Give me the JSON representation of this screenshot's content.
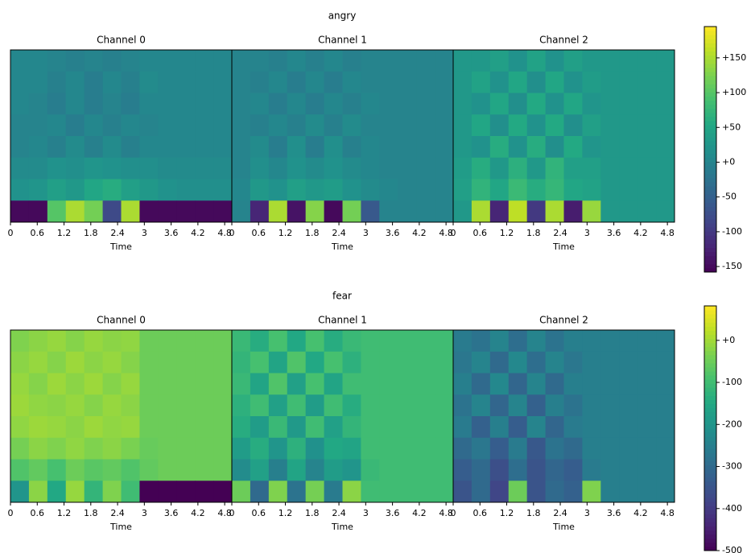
{
  "chart_data": [
    {
      "type": "heatmap",
      "title": "angry",
      "colormap": "viridis",
      "clim": [
        -158,
        195
      ],
      "cticks": [
        {
          "value": 150,
          "label": "+150"
        },
        {
          "value": 100,
          "label": "+100"
        },
        {
          "value": 50,
          "label": "+50"
        },
        {
          "value": 0,
          "label": "+0"
        },
        -50,
        -100,
        -150
      ],
      "panels": [
        {
          "title": "Channel 0",
          "xlabel": "Time",
          "xlim": [
            0,
            4.96
          ],
          "xticks": [
            0,
            0.6,
            1.2,
            1.8,
            2.4,
            3,
            3.6,
            4.2,
            4.8
          ],
          "values": [
            [
              5,
              5,
              0,
              -5,
              0,
              -5,
              0,
              5,
              5,
              5,
              5,
              5
            ],
            [
              5,
              5,
              -5,
              5,
              -10,
              5,
              -5,
              10,
              5,
              5,
              5,
              5
            ],
            [
              5,
              0,
              -10,
              5,
              -10,
              0,
              -10,
              5,
              5,
              5,
              5,
              5
            ],
            [
              0,
              0,
              5,
              -10,
              5,
              -5,
              5,
              0,
              5,
              5,
              5,
              5
            ],
            [
              0,
              5,
              -5,
              10,
              -5,
              10,
              -5,
              5,
              5,
              5,
              5,
              5
            ],
            [
              10,
              10,
              20,
              15,
              25,
              20,
              15,
              15,
              10,
              10,
              10,
              10
            ],
            [
              20,
              25,
              40,
              30,
              50,
              60,
              40,
              30,
              20,
              15,
              15,
              15
            ],
            [
              -150,
              -150,
              100,
              150,
              120,
              -80,
              150,
              -150,
              -150,
              -150,
              -150,
              -150
            ]
          ]
        },
        {
          "title": "Channel 1",
          "xlabel": "Time",
          "xlim": [
            0,
            4.96
          ],
          "xticks": [
            0,
            0.6,
            1.2,
            1.8,
            2.4,
            3,
            3.6,
            4.2,
            4.8
          ],
          "values": [
            [
              0,
              0,
              -5,
              5,
              -5,
              5,
              -5,
              0,
              0,
              0,
              0,
              0
            ],
            [
              0,
              -5,
              5,
              -10,
              5,
              -10,
              5,
              0,
              0,
              0,
              0,
              0
            ],
            [
              0,
              5,
              -10,
              5,
              -10,
              5,
              -5,
              5,
              0,
              0,
              0,
              0
            ],
            [
              0,
              -5,
              5,
              -5,
              10,
              -5,
              10,
              0,
              0,
              0,
              0,
              0
            ],
            [
              0,
              10,
              -10,
              15,
              -10,
              15,
              -5,
              5,
              0,
              0,
              0,
              0
            ],
            [
              0,
              15,
              5,
              20,
              10,
              20,
              10,
              5,
              0,
              0,
              0,
              0
            ],
            [
              5,
              30,
              20,
              40,
              30,
              35,
              20,
              10,
              5,
              0,
              0,
              0
            ],
            [
              0,
              -120,
              150,
              -140,
              130,
              -150,
              120,
              -60,
              0,
              0,
              0,
              0
            ]
          ]
        },
        {
          "title": "Channel 2",
          "xlabel": "Time",
          "xlim": [
            0,
            4.96
          ],
          "xticks": [
            0,
            0.6,
            1.2,
            1.8,
            2.4,
            3,
            3.6,
            4.2,
            4.8
          ],
          "values": [
            [
              30,
              30,
              40,
              20,
              45,
              20,
              40,
              30,
              30,
              30,
              30,
              30
            ],
            [
              30,
              45,
              20,
              50,
              15,
              50,
              20,
              35,
              30,
              30,
              30,
              30
            ],
            [
              30,
              20,
              50,
              15,
              55,
              20,
              50,
              25,
              30,
              30,
              30,
              30
            ],
            [
              30,
              50,
              15,
              55,
              20,
              55,
              15,
              40,
              30,
              30,
              30,
              30
            ],
            [
              30,
              20,
              60,
              20,
              60,
              15,
              55,
              25,
              30,
              30,
              30,
              30
            ],
            [
              35,
              60,
              30,
              65,
              30,
              70,
              40,
              40,
              30,
              30,
              30,
              30
            ],
            [
              40,
              70,
              50,
              80,
              60,
              75,
              50,
              45,
              30,
              30,
              30,
              30
            ],
            [
              30,
              150,
              -120,
              160,
              -100,
              150,
              -130,
              140,
              30,
              30,
              30,
              30
            ]
          ]
        }
      ]
    },
    {
      "type": "heatmap",
      "title": "fear",
      "colormap": "viridis",
      "clim": [
        -500,
        82
      ],
      "cticks": [
        {
          "value": 0,
          "label": "+0"
        },
        -100,
        -200,
        -300,
        -400,
        -500
      ],
      "panels": [
        {
          "title": "Channel 0",
          "xlabel": "Time",
          "xlim": [
            0,
            4.96
          ],
          "xticks": [
            0,
            0.6,
            1.2,
            1.8,
            2.4,
            3,
            3.6,
            4.2,
            4.8
          ],
          "values": [
            [
              -30,
              -20,
              -10,
              -25,
              -10,
              -20,
              -15,
              -50,
              -50,
              -50,
              -50,
              -50
            ],
            [
              -20,
              -10,
              -25,
              -5,
              -20,
              -10,
              -25,
              -50,
              -50,
              -50,
              -50,
              -50
            ],
            [
              -10,
              -25,
              -5,
              -20,
              -5,
              -25,
              -10,
              -50,
              -50,
              -50,
              -50,
              -50
            ],
            [
              -5,
              -15,
              -20,
              -10,
              -25,
              -10,
              -20,
              -50,
              -50,
              -50,
              -50,
              -50
            ],
            [
              -15,
              -5,
              -10,
              -20,
              -5,
              -15,
              -10,
              -50,
              -50,
              -50,
              -50,
              -50
            ],
            [
              -40,
              -20,
              -30,
              -15,
              -30,
              -20,
              -35,
              -55,
              -50,
              -50,
              -50,
              -50
            ],
            [
              -80,
              -60,
              -90,
              -50,
              -70,
              -60,
              -80,
              -60,
              -50,
              -50,
              -50,
              -50
            ],
            [
              -200,
              -20,
              -150,
              -10,
              -120,
              -30,
              -100,
              -500,
              -500,
              -500,
              -500,
              -500
            ]
          ]
        },
        {
          "title": "Channel 1",
          "xlabel": "Time",
          "xlim": [
            0,
            4.96
          ],
          "xticks": [
            0,
            0.6,
            1.2,
            1.8,
            2.4,
            3,
            3.6,
            4.2,
            4.8
          ],
          "values": [
            [
              -110,
              -140,
              -90,
              -150,
              -90,
              -140,
              -110,
              -100,
              -100,
              -100,
              -100,
              -100
            ],
            [
              -120,
              -90,
              -160,
              -80,
              -150,
              -90,
              -130,
              -100,
              -100,
              -100,
              -100,
              -100
            ],
            [
              -110,
              -160,
              -80,
              -170,
              -90,
              -160,
              -100,
              -100,
              -100,
              -100,
              -100,
              -100
            ],
            [
              -130,
              -100,
              -170,
              -100,
              -180,
              -100,
              -140,
              -100,
              -100,
              -100,
              -100,
              -100
            ],
            [
              -140,
              -180,
              -110,
              -190,
              -100,
              -170,
              -120,
              -100,
              -100,
              -100,
              -100,
              -100
            ],
            [
              -180,
              -140,
              -200,
              -130,
              -210,
              -150,
              -160,
              -100,
              -100,
              -100,
              -100,
              -100
            ],
            [
              -220,
              -170,
              -250,
              -160,
              -240,
              -180,
              -200,
              -110,
              -100,
              -100,
              -100,
              -100
            ],
            [
              -50,
              -300,
              -30,
              -280,
              -40,
              -260,
              -20,
              -100,
              -100,
              -100,
              -100,
              -100
            ]
          ]
        },
        {
          "title": "Channel 2",
          "xlabel": "Time",
          "xlim": [
            0,
            4.96
          ],
          "xticks": [
            0,
            0.6,
            1.2,
            1.8,
            2.4,
            3,
            3.6,
            4.2,
            4.8
          ],
          "values": [
            [
              -260,
              -280,
              -240,
              -290,
              -240,
              -280,
              -250,
              -250,
              -250,
              -250,
              -250,
              -250
            ],
            [
              -270,
              -240,
              -300,
              -230,
              -290,
              -240,
              -270,
              -250,
              -250,
              -250,
              -250,
              -250
            ],
            [
              -250,
              -300,
              -230,
              -310,
              -240,
              -300,
              -250,
              -250,
              -250,
              -250,
              -250,
              -250
            ],
            [
              -280,
              -240,
              -310,
              -240,
              -320,
              -250,
              -280,
              -250,
              -250,
              -250,
              -250,
              -250
            ],
            [
              -260,
              -320,
              -250,
              -330,
              -240,
              -310,
              -260,
              -250,
              -250,
              -250,
              -250,
              -250
            ],
            [
              -300,
              -270,
              -330,
              -260,
              -340,
              -280,
              -300,
              -250,
              -250,
              -250,
              -250,
              -250
            ],
            [
              -330,
              -300,
              -360,
              -290,
              -350,
              -310,
              -330,
              -260,
              -250,
              -250,
              -250,
              -250
            ],
            [
              -350,
              -300,
              -380,
              -50,
              -350,
              -300,
              -320,
              -30,
              -250,
              -250,
              -250,
              -250
            ]
          ]
        }
      ]
    }
  ]
}
